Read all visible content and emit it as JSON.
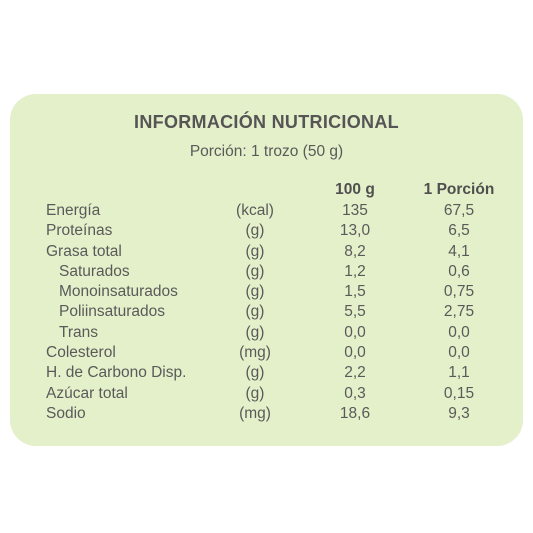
{
  "title": "INFORMACIÓN NUTRICIONAL",
  "serving": "Porción: 1 trozo (50 g)",
  "columns": {
    "per_100g": "100 g",
    "per_portion": "1 Porción"
  },
  "rows": [
    {
      "name": "Energía",
      "unit": "(kcal)",
      "per_100g": "135",
      "per_portion": "67,5",
      "indent": false
    },
    {
      "name": "Proteínas",
      "unit": "(g)",
      "per_100g": "13,0",
      "per_portion": "6,5",
      "indent": false
    },
    {
      "name": "Grasa total",
      "unit": "(g)",
      "per_100g": "8,2",
      "per_portion": "4,1",
      "indent": false
    },
    {
      "name": "Saturados",
      "unit": "(g)",
      "per_100g": "1,2",
      "per_portion": "0,6",
      "indent": true
    },
    {
      "name": "Monoinsaturados",
      "unit": "(g)",
      "per_100g": "1,5",
      "per_portion": "0,75",
      "indent": true
    },
    {
      "name": "Poliinsaturados",
      "unit": "(g)",
      "per_100g": "5,5",
      "per_portion": "2,75",
      "indent": true
    },
    {
      "name": "Trans",
      "unit": "(g)",
      "per_100g": "0,0",
      "per_portion": "0,0",
      "indent": true
    },
    {
      "name": "Colesterol",
      "unit": "(mg)",
      "per_100g": "0,0",
      "per_portion": "0,0",
      "indent": false
    },
    {
      "name": "H. de Carbono Disp.",
      "unit": "(g)",
      "per_100g": "2,2",
      "per_portion": "1,1",
      "indent": false
    },
    {
      "name": "Azúcar total",
      "unit": "(g)",
      "per_100g": "0,3",
      "per_portion": "0,15",
      "indent": false
    },
    {
      "name": "Sodio",
      "unit": "(mg)",
      "per_100g": "18,6",
      "per_portion": "9,3",
      "indent": false
    }
  ],
  "colors": {
    "card_background": "#e3f0c9",
    "text": "#5a5a5a"
  }
}
